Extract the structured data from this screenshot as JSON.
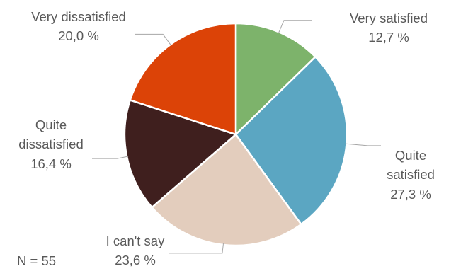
{
  "chart_data": {
    "type": "pie",
    "title": "",
    "categories": [
      "Very satisfied",
      "Quite satisfied",
      "I can't say",
      "Quite dissatisfied",
      "Very dissatisfied"
    ],
    "values": [
      12.7,
      27.3,
      23.6,
      16.4,
      20.0
    ],
    "value_labels": [
      "12,7 %",
      "27,3 %",
      "23,6 %",
      "16,4 %",
      "20,0 %"
    ],
    "colors": [
      "#7db36b",
      "#5ba6c2",
      "#e3cdbd",
      "#3f1f1e",
      "#dc4307"
    ],
    "start_angle": "12 o'clock",
    "direction": "clockwise",
    "legend": "none (labels placed next to slices with leader lines)",
    "note": "N = 55"
  }
}
